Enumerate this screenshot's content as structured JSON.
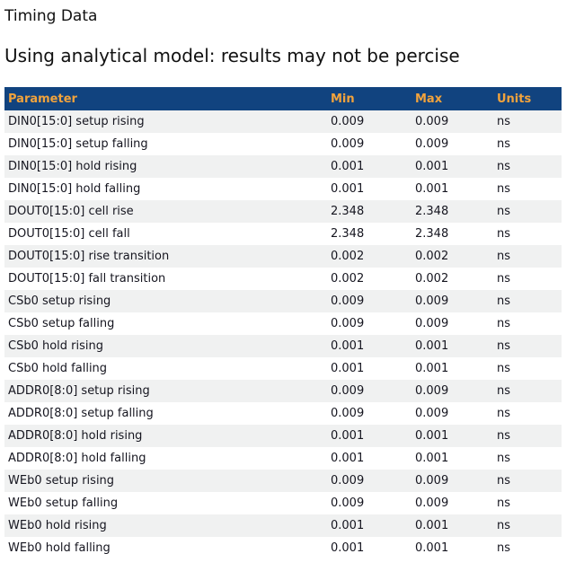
{
  "page": {
    "title": "Timing Data",
    "subtitle": "Using analytical model: results may not be percise"
  },
  "colors": {
    "header_bg": "#11437f",
    "header_text": "#f2a33c",
    "row_stripe": "#f0f1f1",
    "row_white": "#ffffff",
    "body_text": "#15151f"
  },
  "table": {
    "columns": {
      "parameter": "Parameter",
      "min": "Min",
      "max": "Max",
      "units": "Units"
    },
    "rows": [
      {
        "parameter": "DIN0[15:0] setup rising",
        "min": "0.009",
        "max": "0.009",
        "units": "ns"
      },
      {
        "parameter": "DIN0[15:0] setup falling",
        "min": "0.009",
        "max": "0.009",
        "units": "ns"
      },
      {
        "parameter": "DIN0[15:0] hold rising",
        "min": "0.001",
        "max": "0.001",
        "units": "ns"
      },
      {
        "parameter": "DIN0[15:0] hold falling",
        "min": "0.001",
        "max": "0.001",
        "units": "ns"
      },
      {
        "parameter": "DOUT0[15:0] cell rise",
        "min": "2.348",
        "max": "2.348",
        "units": "ns"
      },
      {
        "parameter": "DOUT0[15:0] cell fall",
        "min": "2.348",
        "max": "2.348",
        "units": "ns"
      },
      {
        "parameter": "DOUT0[15:0] rise transition",
        "min": "0.002",
        "max": "0.002",
        "units": "ns"
      },
      {
        "parameter": "DOUT0[15:0] fall transition",
        "min": "0.002",
        "max": "0.002",
        "units": "ns"
      },
      {
        "parameter": "CSb0 setup rising",
        "min": "0.009",
        "max": "0.009",
        "units": "ns"
      },
      {
        "parameter": "CSb0 setup falling",
        "min": "0.009",
        "max": "0.009",
        "units": "ns"
      },
      {
        "parameter": "CSb0 hold rising",
        "min": "0.001",
        "max": "0.001",
        "units": "ns"
      },
      {
        "parameter": "CSb0 hold falling",
        "min": "0.001",
        "max": "0.001",
        "units": "ns"
      },
      {
        "parameter": "ADDR0[8:0] setup rising",
        "min": "0.009",
        "max": "0.009",
        "units": "ns"
      },
      {
        "parameter": "ADDR0[8:0] setup falling",
        "min": "0.009",
        "max": "0.009",
        "units": "ns"
      },
      {
        "parameter": "ADDR0[8:0] hold rising",
        "min": "0.001",
        "max": "0.001",
        "units": "ns"
      },
      {
        "parameter": "ADDR0[8:0] hold falling",
        "min": "0.001",
        "max": "0.001",
        "units": "ns"
      },
      {
        "parameter": "WEb0 setup rising",
        "min": "0.009",
        "max": "0.009",
        "units": "ns"
      },
      {
        "parameter": "WEb0 setup falling",
        "min": "0.009",
        "max": "0.009",
        "units": "ns"
      },
      {
        "parameter": "WEb0 hold rising",
        "min": "0.001",
        "max": "0.001",
        "units": "ns"
      },
      {
        "parameter": "WEb0 hold falling",
        "min": "0.001",
        "max": "0.001",
        "units": "ns"
      }
    ]
  }
}
